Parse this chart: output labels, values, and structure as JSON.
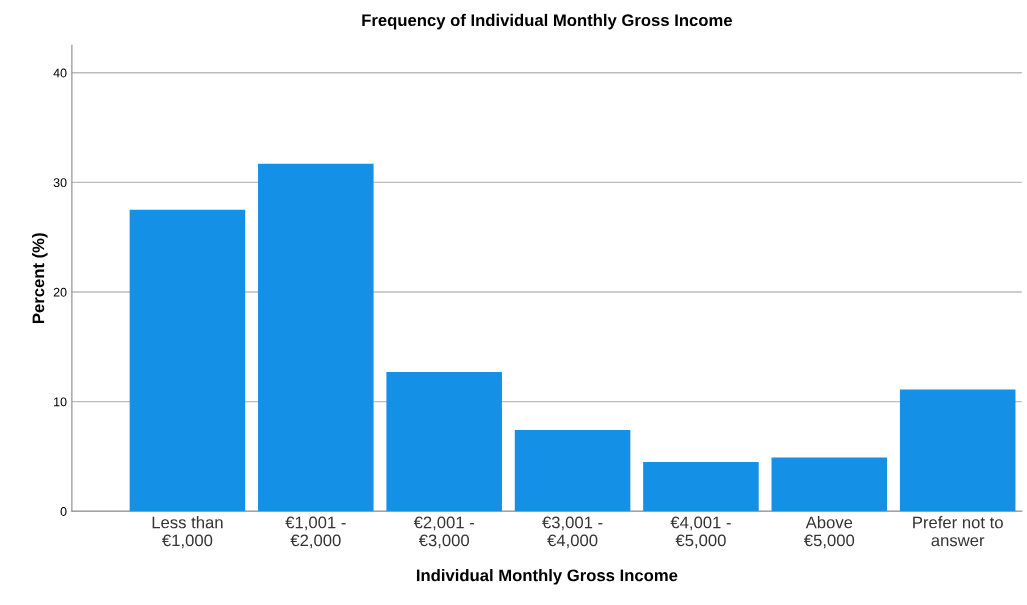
{
  "chart_data": {
    "type": "bar",
    "title": "Frequency of Individual Monthly Gross Income",
    "xlabel": "Individual Monthly Gross Income",
    "ylabel": "Percent (%)",
    "categories": [
      "Less than\n€1,000",
      "€1,001 -\n€2,000",
      "€2,001 -\n€3,000",
      "€3,001 -\n€4,000",
      "€4,001 -\n€5,000",
      "Above\n€5,000",
      "Prefer not to\nanswer"
    ],
    "values": [
      27.5,
      31.7,
      12.7,
      7.4,
      4.5,
      4.9,
      11.1
    ],
    "color": "#1490e6",
    "ylim": [
      0,
      42.5
    ],
    "yticks": [
      0,
      10,
      20,
      30,
      40
    ],
    "grid": "y"
  }
}
